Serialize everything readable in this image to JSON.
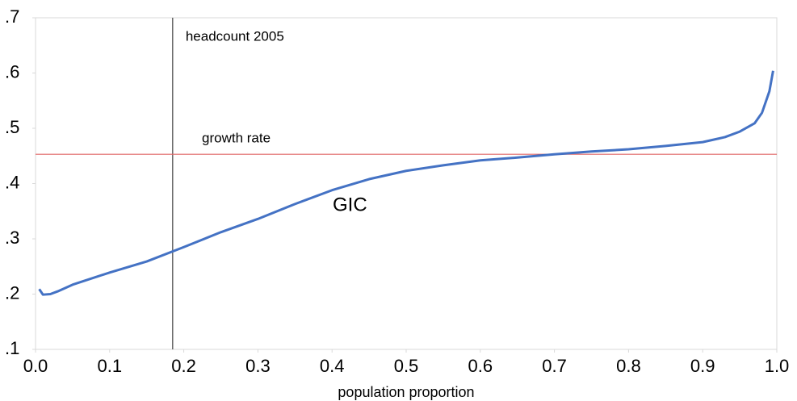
{
  "chart_data": {
    "type": "line",
    "xlabel": "population proportion",
    "x": [
      0.005,
      0.01,
      0.02,
      0.03,
      0.05,
      0.1,
      0.15,
      0.2,
      0.25,
      0.3,
      0.35,
      0.4,
      0.45,
      0.5,
      0.55,
      0.6,
      0.65,
      0.7,
      0.75,
      0.8,
      0.85,
      0.9,
      0.93,
      0.95,
      0.97,
      0.98,
      0.99,
      0.995
    ],
    "series": [
      {
        "name": "GIC",
        "color": "#4472c4",
        "values": [
          0.209,
          0.199,
          0.2,
          0.205,
          0.217,
          0.239,
          0.259,
          0.285,
          0.312,
          0.336,
          0.363,
          0.388,
          0.408,
          0.423,
          0.433,
          0.442,
          0.447,
          0.453,
          0.458,
          0.462,
          0.468,
          0.475,
          0.484,
          0.494,
          0.509,
          0.528,
          0.567,
          0.604
        ]
      }
    ],
    "xlim": [
      0,
      1
    ],
    "xticks": [
      {
        "value": 0,
        "label": "0.0"
      },
      0.1,
      0.2,
      0.3,
      0.4,
      0.5,
      0.6,
      0.7,
      0.8,
      0.9,
      {
        "value": 1,
        "label": "1.0"
      }
    ],
    "ylim": [
      0.1,
      0.7
    ],
    "yticks": [
      {
        "value": 0.1,
        "label": ".1"
      },
      {
        "value": 0.2,
        "label": ".2"
      },
      {
        "value": 0.3,
        "label": ".3"
      },
      {
        "value": 0.4,
        "label": ".4"
      },
      {
        "value": 0.5,
        "label": ".5"
      },
      {
        "value": 0.6,
        "label": ".6"
      },
      {
        "value": 0.7,
        "label": ".7"
      }
    ],
    "vline": {
      "value": 0.185,
      "label": "headcount 2005",
      "color": "#404040"
    },
    "hline": {
      "value": 0.453,
      "label": "growth rate",
      "color": "#e06666"
    }
  }
}
